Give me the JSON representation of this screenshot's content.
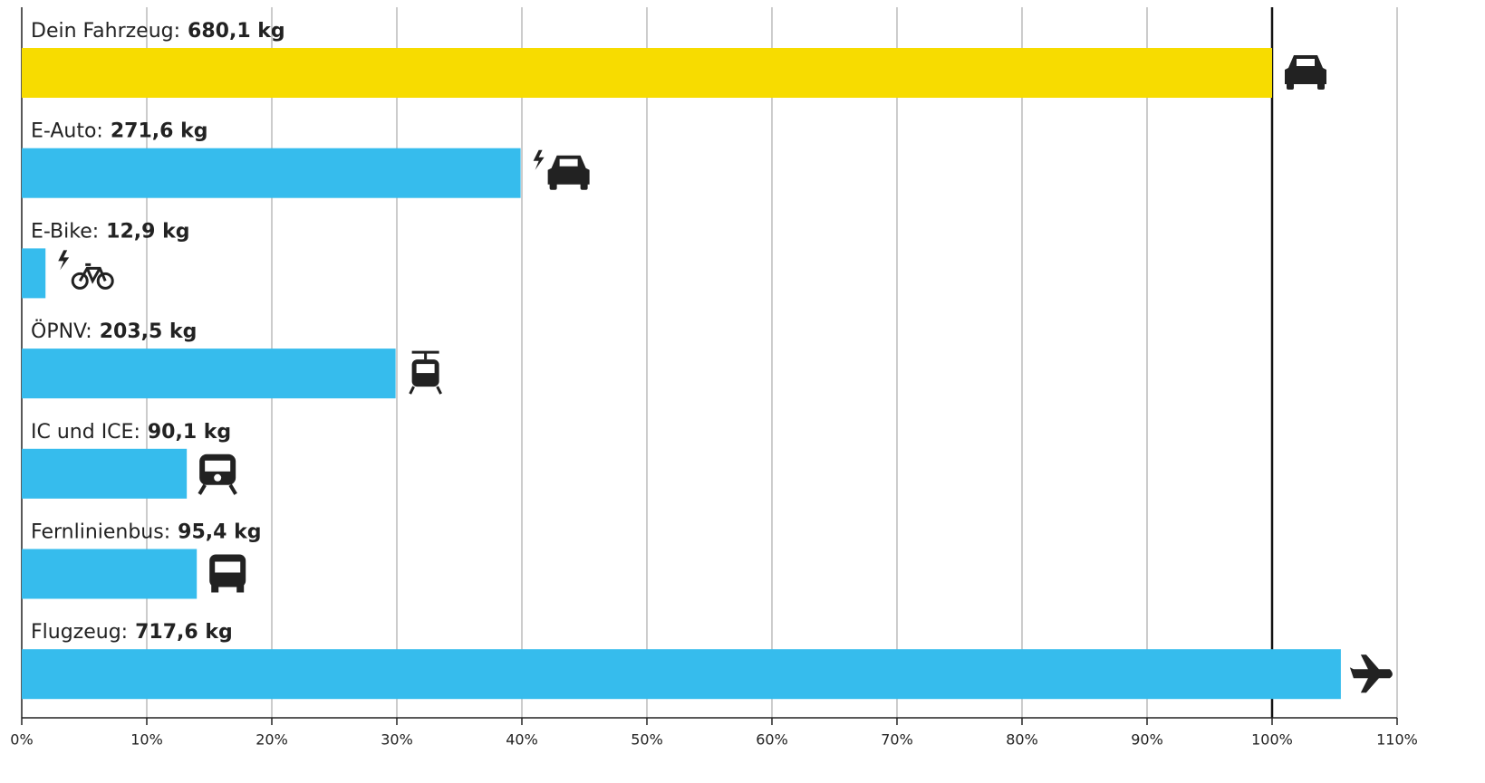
{
  "chart_data": {
    "type": "hbar",
    "categories": [
      "Dein Fahrzeug:",
      "E-Auto:",
      "E-Bike:",
      "ÖPNV:",
      "IC und ICE:",
      "Fernlinienbus:",
      "Flugzeug:"
    ],
    "amount_labels": [
      "680,1 kg",
      "271,6 kg",
      "12,9 kg",
      "203,5 kg",
      "90,1 kg",
      "95,4 kg",
      "717,6 kg"
    ],
    "values": [
      100,
      39.9,
      1.9,
      29.9,
      13.2,
      14.0,
      105.5
    ],
    "colors": [
      "#f7dc00",
      "#36bced",
      "#36bced",
      "#36bced",
      "#36bced",
      "#36bced",
      "#36bced"
    ],
    "xlim": [
      0,
      110
    ],
    "xticks": [
      {
        "value": 0,
        "label": "0%"
      },
      {
        "value": 10,
        "label": "10%"
      },
      {
        "value": 20,
        "label": "20%"
      },
      {
        "value": 30,
        "label": "30%"
      },
      {
        "value": 40,
        "label": "40%"
      },
      {
        "value": 50,
        "label": "50%"
      },
      {
        "value": 60,
        "label": "60%"
      },
      {
        "value": 70,
        "label": "70%"
      },
      {
        "value": 80,
        "label": "80%"
      },
      {
        "value": 90,
        "label": "90%"
      },
      {
        "value": 100,
        "label": "100%"
      },
      {
        "value": 110,
        "label": "110%"
      }
    ],
    "reference_x": 100,
    "grid": true
  }
}
